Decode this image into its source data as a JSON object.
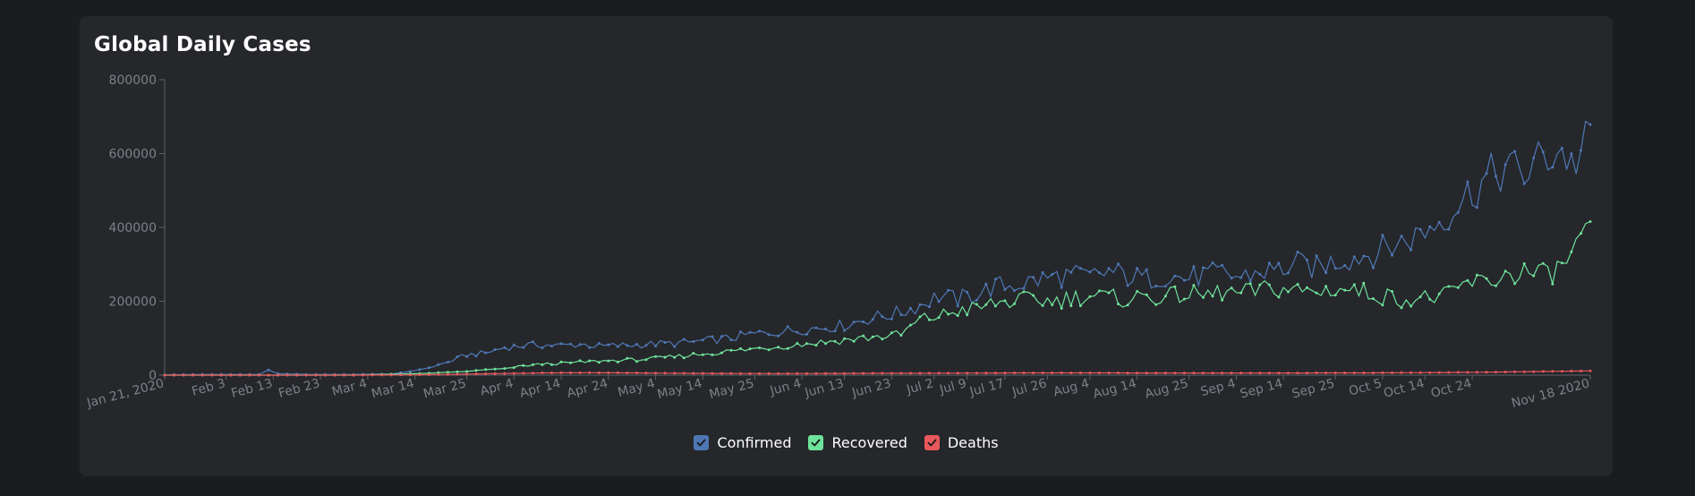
{
  "card": {
    "title": "Global Daily Cases"
  },
  "chart_data": {
    "type": "line",
    "title": "Global Daily Cases",
    "xlabel": "",
    "ylabel": "",
    "ylim": [
      0,
      800000
    ],
    "yticks": [
      0,
      200000,
      400000,
      600000,
      800000
    ],
    "xlim": [
      0,
      302
    ],
    "x_tick_labels": [
      {
        "day": 0,
        "label": "Jan 21, 2020"
      },
      {
        "day": 13,
        "label": "Feb 3"
      },
      {
        "day": 23,
        "label": "Feb 13"
      },
      {
        "day": 33,
        "label": "Feb 23"
      },
      {
        "day": 43,
        "label": "Mar 4"
      },
      {
        "day": 53,
        "label": "Mar 14"
      },
      {
        "day": 64,
        "label": "Mar 25"
      },
      {
        "day": 74,
        "label": "Apr 4"
      },
      {
        "day": 84,
        "label": "Apr 14"
      },
      {
        "day": 94,
        "label": "Apr 24"
      },
      {
        "day": 104,
        "label": "May 4"
      },
      {
        "day": 114,
        "label": "May 14"
      },
      {
        "day": 125,
        "label": "May 25"
      },
      {
        "day": 135,
        "label": "Jun 4"
      },
      {
        "day": 144,
        "label": "Jun 13"
      },
      {
        "day": 154,
        "label": "Jun 23"
      },
      {
        "day": 163,
        "label": "Jul 2"
      },
      {
        "day": 170,
        "label": "Jul 9"
      },
      {
        "day": 178,
        "label": "Jul 17"
      },
      {
        "day": 187,
        "label": "Jul 26"
      },
      {
        "day": 196,
        "label": "Aug 4"
      },
      {
        "day": 206,
        "label": "Aug 14"
      },
      {
        "day": 217,
        "label": "Aug 25"
      },
      {
        "day": 227,
        "label": "Sep 4"
      },
      {
        "day": 237,
        "label": "Sep 14"
      },
      {
        "day": 248,
        "label": "Sep 25"
      },
      {
        "day": 258,
        "label": "Oct 5"
      },
      {
        "day": 267,
        "label": "Oct 14"
      },
      {
        "day": 277,
        "label": "Oct 24"
      },
      {
        "day": 302,
        "label": "Nov 18 2020"
      }
    ],
    "series": [
      {
        "name": "Confirmed",
        "color": "#4f77b4",
        "points": [
          [
            0,
            1000
          ],
          [
            10,
            2000
          ],
          [
            20,
            2000
          ],
          [
            22,
            14000
          ],
          [
            24,
            4000
          ],
          [
            30,
            2000
          ],
          [
            40,
            2000
          ],
          [
            48,
            3000
          ],
          [
            52,
            10000
          ],
          [
            56,
            20000
          ],
          [
            60,
            35000
          ],
          [
            64,
            55000
          ],
          [
            68,
            60000
          ],
          [
            72,
            75000
          ],
          [
            76,
            80000
          ],
          [
            80,
            82000
          ],
          [
            84,
            80000
          ],
          [
            88,
            84000
          ],
          [
            92,
            78000
          ],
          [
            96,
            80000
          ],
          [
            100,
            82000
          ],
          [
            104,
            85000
          ],
          [
            108,
            86000
          ],
          [
            112,
            90000
          ],
          [
            116,
            95000
          ],
          [
            120,
            100000
          ],
          [
            124,
            110000
          ],
          [
            128,
            115000
          ],
          [
            132,
            120000
          ],
          [
            136,
            125000
          ],
          [
            140,
            130000
          ],
          [
            144,
            135000
          ],
          [
            148,
            150000
          ],
          [
            152,
            160000
          ],
          [
            156,
            170000
          ],
          [
            160,
            190000
          ],
          [
            164,
            215000
          ],
          [
            168,
            205000
          ],
          [
            172,
            220000
          ],
          [
            176,
            240000
          ],
          [
            180,
            245000
          ],
          [
            184,
            255000
          ],
          [
            188,
            265000
          ],
          [
            192,
            270000
          ],
          [
            196,
            265000
          ],
          [
            200,
            280000
          ],
          [
            204,
            268000
          ],
          [
            208,
            260000
          ],
          [
            212,
            270000
          ],
          [
            216,
            262000
          ],
          [
            220,
            270000
          ],
          [
            224,
            275000
          ],
          [
            228,
            265000
          ],
          [
            232,
            280000
          ],
          [
            236,
            285000
          ],
          [
            240,
            300000
          ],
          [
            244,
            290000
          ],
          [
            248,
            310000
          ],
          [
            252,
            320000
          ],
          [
            256,
            330000
          ],
          [
            260,
            350000
          ],
          [
            264,
            370000
          ],
          [
            268,
            400000
          ],
          [
            272,
            440000
          ],
          [
            276,
            490000
          ],
          [
            280,
            530000
          ],
          [
            284,
            560000
          ],
          [
            288,
            545000
          ],
          [
            292,
            590000
          ],
          [
            296,
            610000
          ],
          [
            298,
            570000
          ],
          [
            300,
            600000
          ],
          [
            302,
            645000
          ]
        ]
      },
      {
        "name": "Recovered",
        "color": "#6fe39b",
        "points": [
          [
            0,
            0
          ],
          [
            40,
            0
          ],
          [
            50,
            3000
          ],
          [
            56,
            5000
          ],
          [
            60,
            8000
          ],
          [
            64,
            10000
          ],
          [
            68,
            15000
          ],
          [
            72,
            18000
          ],
          [
            76,
            25000
          ],
          [
            80,
            30000
          ],
          [
            84,
            32000
          ],
          [
            88,
            35000
          ],
          [
            92,
            38000
          ],
          [
            96,
            40000
          ],
          [
            100,
            42000
          ],
          [
            104,
            45000
          ],
          [
            108,
            50000
          ],
          [
            112,
            55000
          ],
          [
            116,
            60000
          ],
          [
            120,
            65000
          ],
          [
            124,
            70000
          ],
          [
            128,
            75000
          ],
          [
            132,
            80000
          ],
          [
            136,
            85000
          ],
          [
            140,
            90000
          ],
          [
            144,
            95000
          ],
          [
            148,
            100000
          ],
          [
            152,
            105000
          ],
          [
            156,
            110000
          ],
          [
            160,
            150000
          ],
          [
            164,
            160000
          ],
          [
            168,
            175000
          ],
          [
            172,
            180000
          ],
          [
            176,
            195000
          ],
          [
            180,
            200000
          ],
          [
            184,
            205000
          ],
          [
            188,
            200000
          ],
          [
            192,
            210000
          ],
          [
            196,
            215000
          ],
          [
            200,
            210000
          ],
          [
            204,
            205000
          ],
          [
            208,
            215000
          ],
          [
            212,
            210000
          ],
          [
            216,
            220000
          ],
          [
            220,
            215000
          ],
          [
            224,
            225000
          ],
          [
            228,
            220000
          ],
          [
            232,
            230000
          ],
          [
            236,
            235000
          ],
          [
            240,
            230000
          ],
          [
            244,
            225000
          ],
          [
            248,
            235000
          ],
          [
            252,
            230000
          ],
          [
            256,
            220000
          ],
          [
            260,
            210000
          ],
          [
            264,
            205000
          ],
          [
            268,
            210000
          ],
          [
            272,
            215000
          ],
          [
            276,
            250000
          ],
          [
            280,
            250000
          ],
          [
            284,
            270000
          ],
          [
            288,
            280000
          ],
          [
            292,
            270000
          ],
          [
            296,
            290000
          ],
          [
            298,
            330000
          ],
          [
            300,
            360000
          ],
          [
            302,
            375000
          ]
        ]
      },
      {
        "name": "Deaths",
        "color": "#e8585a",
        "points": [
          [
            0,
            0
          ],
          [
            40,
            0
          ],
          [
            52,
            500
          ],
          [
            60,
            2000
          ],
          [
            64,
            3000
          ],
          [
            70,
            4000
          ],
          [
            80,
            6000
          ],
          [
            90,
            6500
          ],
          [
            100,
            6000
          ],
          [
            110,
            5000
          ],
          [
            120,
            4500
          ],
          [
            130,
            4200
          ],
          [
            140,
            4500
          ],
          [
            150,
            5000
          ],
          [
            160,
            5200
          ],
          [
            170,
            5500
          ],
          [
            180,
            6000
          ],
          [
            190,
            6200
          ],
          [
            200,
            6000
          ],
          [
            210,
            5800
          ],
          [
            220,
            5700
          ],
          [
            230,
            5800
          ],
          [
            240,
            5900
          ],
          [
            250,
            6000
          ],
          [
            260,
            6300
          ],
          [
            270,
            7000
          ],
          [
            280,
            8000
          ],
          [
            290,
            9500
          ],
          [
            296,
            10500
          ],
          [
            302,
            11500
          ]
        ]
      }
    ],
    "legend": [
      {
        "name": "Confirmed",
        "color": "#4f77b4",
        "checked": true
      },
      {
        "name": "Recovered",
        "color": "#6fe39b",
        "checked": true
      },
      {
        "name": "Deaths",
        "color": "#e8585a",
        "checked": true
      }
    ],
    "legend_position": "bottom-center",
    "grid": false
  }
}
